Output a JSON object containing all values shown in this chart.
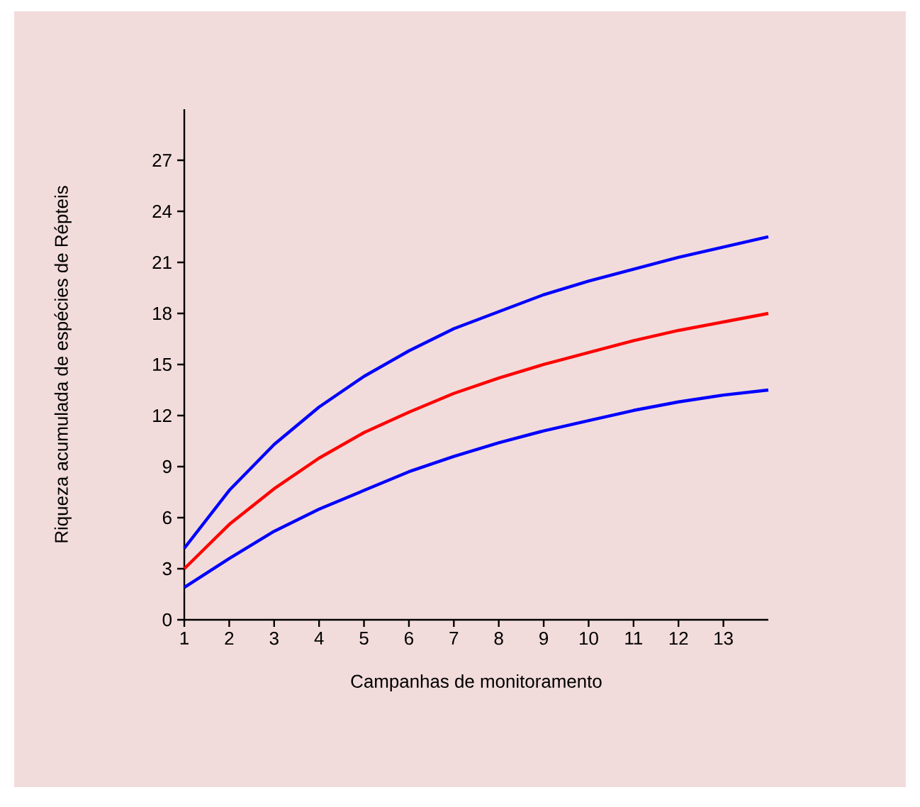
{
  "chart_data": {
    "type": "line",
    "xlabel": "Campanhas de monitoramento",
    "ylabel": "Riqueza acumulada de espécies de Répteis",
    "x": [
      1,
      2,
      3,
      4,
      5,
      6,
      7,
      8,
      9,
      10,
      11,
      12,
      13,
      14
    ],
    "xlim": [
      1,
      14
    ],
    "ylim": [
      0,
      30
    ],
    "xticks": [
      1,
      2,
      3,
      4,
      5,
      6,
      7,
      8,
      9,
      10,
      11,
      12,
      13
    ],
    "yticks": [
      0,
      3,
      6,
      9,
      12,
      15,
      18,
      21,
      24,
      27
    ],
    "marker": "none",
    "line_style": "solid",
    "series": [
      {
        "color": "#0000ff",
        "values": [
          4.2,
          7.6,
          10.3,
          12.5,
          14.3,
          15.8,
          17.1,
          18.1,
          19.1,
          19.9,
          20.6,
          21.3,
          21.9,
          22.5
        ]
      },
      {
        "color": "#ff0000",
        "values": [
          3.0,
          5.6,
          7.7,
          9.5,
          11.0,
          12.2,
          13.3,
          14.2,
          15.0,
          15.7,
          16.4,
          17.0,
          17.5,
          18.0
        ]
      },
      {
        "color": "#0000ff",
        "values": [
          1.9,
          3.6,
          5.2,
          6.5,
          7.6,
          8.7,
          9.6,
          10.4,
          11.1,
          11.7,
          12.3,
          12.8,
          13.2,
          13.5
        ]
      }
    ]
  }
}
